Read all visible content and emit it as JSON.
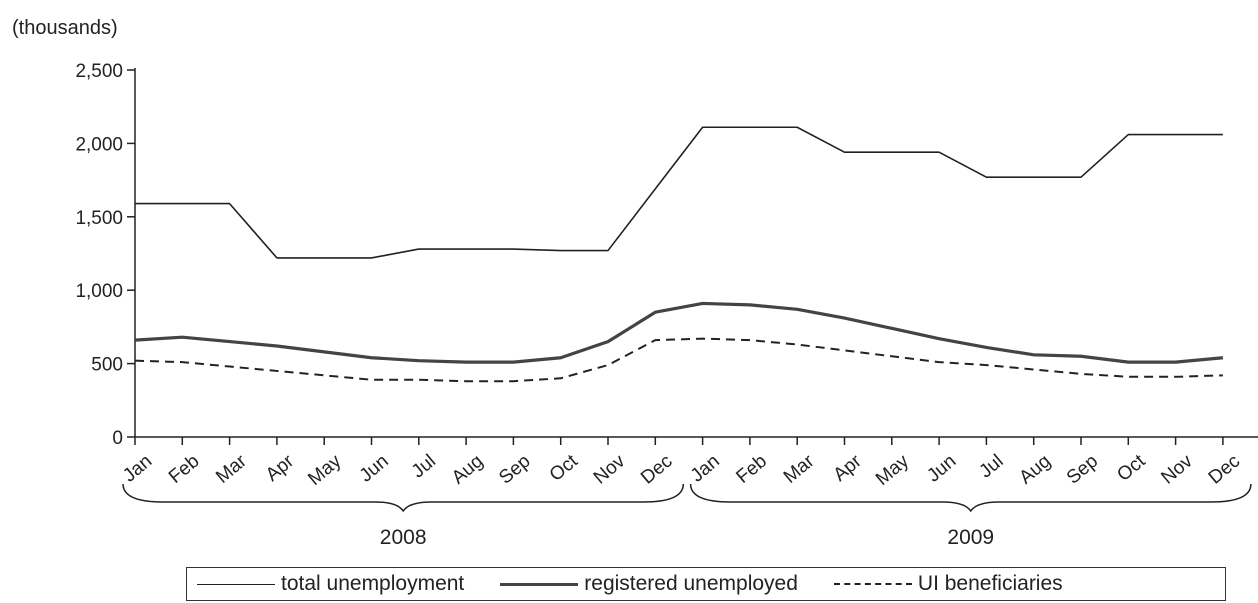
{
  "chart_data": {
    "type": "line",
    "unit_label": "(thousands)",
    "categories": [
      "Jan",
      "Feb",
      "Mar",
      "Apr",
      "May",
      "Jun",
      "Jul",
      "Aug",
      "Sep",
      "Oct",
      "Nov",
      "Dec",
      "Jan",
      "Feb",
      "Mar",
      "Apr",
      "May",
      "Jun",
      "Jul",
      "Aug",
      "Sep",
      "Oct",
      "Nov",
      "Dec"
    ],
    "year_groups": [
      {
        "label": "2008",
        "start": 0,
        "end": 11
      },
      {
        "label": "2009",
        "start": 12,
        "end": 23
      }
    ],
    "yticks": [
      0,
      500,
      1000,
      1500,
      2000,
      2500
    ],
    "ytick_labels": [
      "0",
      "500",
      "1,000",
      "1,500",
      "2,000",
      "2,500"
    ],
    "ylim": [
      0,
      2500
    ],
    "series": [
      {
        "name": "total unemployment",
        "style": "thin",
        "values": [
          1590,
          1590,
          1590,
          1220,
          1220,
          1220,
          1280,
          1280,
          1280,
          1270,
          1270,
          1690,
          2110,
          2110,
          2110,
          1940,
          1940,
          1940,
          1770,
          1770,
          1770,
          2060,
          2060,
          2060
        ]
      },
      {
        "name": "registered unemployed",
        "style": "thick",
        "values": [
          660,
          680,
          650,
          620,
          580,
          540,
          520,
          510,
          510,
          540,
          650,
          850,
          910,
          900,
          870,
          810,
          740,
          670,
          610,
          560,
          550,
          510,
          510,
          540
        ]
      },
      {
        "name": "UI beneficiaries",
        "style": "dashed",
        "values": [
          520,
          510,
          480,
          450,
          420,
          390,
          390,
          380,
          380,
          400,
          490,
          660,
          670,
          660,
          630,
          590,
          550,
          510,
          490,
          460,
          430,
          410,
          410,
          420
        ]
      }
    ]
  },
  "legend": {
    "total": "total unemployment",
    "registered": "registered unemployed",
    "ui": "UI beneficiaries"
  }
}
